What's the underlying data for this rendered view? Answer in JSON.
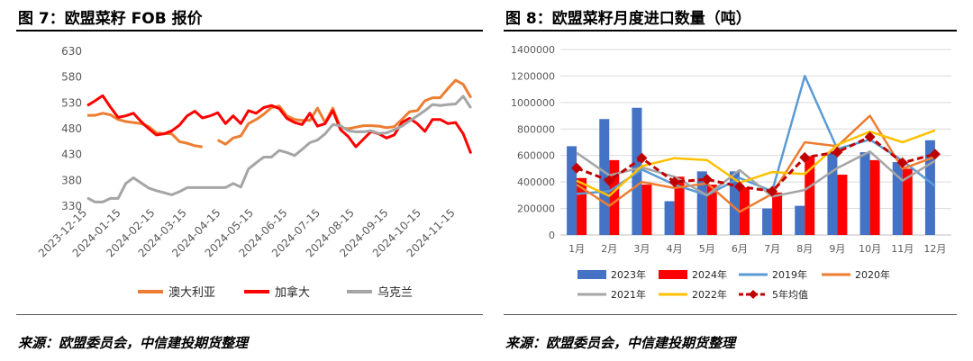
{
  "left": {
    "title": "图 7：欧盟菜籽 FOB 报价",
    "source": "来源：欧盟委员会，中信建投期货整理",
    "chart_data": {
      "type": "line",
      "title": "",
      "xlabel": "",
      "ylabel": "",
      "ylim": [
        330,
        630
      ],
      "yticks": [
        330,
        380,
        430,
        480,
        530,
        580,
        630
      ],
      "xticks": [
        "2023-12-15",
        "2024-01-15",
        "2024-02-15",
        "2024-03-15",
        "2024-04-15",
        "2024-05-15",
        "2024-06-15",
        "2024-07-15",
        "2024-08-15",
        "2024-09-15",
        "2024-10-15",
        "2024-11-15"
      ],
      "x_start": "2023-12-15",
      "x_end": "2024-12-05",
      "grid": false,
      "legend": "bottom",
      "series": [
        {
          "name": "澳大利亚",
          "color": "#ed7d31",
          "points": [
            [
              "2023-12-15",
              506
            ],
            [
              "2023-12-22",
              506
            ],
            [
              "2023-12-29",
              510
            ],
            [
              "2024-01-05",
              507
            ],
            [
              "2024-01-12",
              498
            ],
            [
              "2024-01-19",
              494
            ],
            [
              "2024-01-26",
              492
            ],
            [
              "2024-02-02",
              490
            ],
            [
              "2024-02-09",
              484
            ],
            [
              "2024-02-16",
              472
            ],
            [
              "2024-02-23",
              471
            ],
            [
              "2024-03-01",
              470
            ],
            [
              "2024-03-08",
              455
            ],
            [
              "2024-03-15",
              452
            ],
            [
              "2024-03-22",
              447
            ],
            [
              "2024-03-29",
              445
            ],
            null,
            [
              "2024-04-12",
              458
            ],
            [
              "2024-04-19",
              450
            ],
            [
              "2024-04-26",
              462
            ],
            [
              "2024-05-03",
              466
            ],
            [
              "2024-05-10",
              490
            ],
            [
              "2024-05-17",
              498
            ],
            [
              "2024-05-24",
              508
            ],
            [
              "2024-05-31",
              521
            ],
            [
              "2024-06-07",
              524
            ],
            [
              "2024-06-14",
              505
            ],
            [
              "2024-06-21",
              498
            ],
            [
              "2024-06-28",
              496
            ],
            [
              "2024-07-05",
              496
            ],
            [
              "2024-07-12",
              520
            ],
            [
              "2024-07-19",
              492
            ],
            [
              "2024-07-26",
              520
            ],
            [
              "2024-08-02",
              482
            ],
            [
              "2024-08-09",
              480
            ],
            [
              "2024-08-16",
              483
            ],
            [
              "2024-08-23",
              486
            ],
            [
              "2024-08-30",
              486
            ],
            [
              "2024-09-06",
              485
            ],
            [
              "2024-09-13",
              482
            ],
            [
              "2024-09-20",
              484
            ],
            [
              "2024-09-27",
              498
            ],
            [
              "2024-10-04",
              513
            ],
            [
              "2024-10-11",
              515
            ],
            [
              "2024-10-18",
              534
            ],
            [
              "2024-10-25",
              540
            ],
            [
              "2024-11-01",
              540
            ],
            [
              "2024-11-08",
              558
            ],
            [
              "2024-11-15",
              574
            ],
            [
              "2024-11-22",
              566
            ],
            [
              "2024-11-29",
              540
            ]
          ]
        },
        {
          "name": "加拿大",
          "color": "#ff0000",
          "points": [
            [
              "2023-12-15",
              525
            ],
            [
              "2023-12-22",
              534
            ],
            [
              "2023-12-29",
              544
            ],
            [
              "2024-01-05",
              522
            ],
            [
              "2024-01-12",
              502
            ],
            [
              "2024-01-19",
              505
            ],
            [
              "2024-01-26",
              510
            ],
            [
              "2024-02-02",
              494
            ],
            [
              "2024-02-09",
              480
            ],
            [
              "2024-02-16",
              468
            ],
            [
              "2024-02-23",
              470
            ],
            [
              "2024-03-01",
              476
            ],
            [
              "2024-03-08",
              487
            ],
            [
              "2024-03-15",
              505
            ],
            [
              "2024-03-22",
              514
            ],
            [
              "2024-03-29",
              501
            ],
            [
              "2024-04-05",
              505
            ],
            [
              "2024-04-12",
              511
            ],
            [
              "2024-04-19",
              490
            ],
            [
              "2024-04-26",
              505
            ],
            [
              "2024-05-03",
              490
            ],
            [
              "2024-05-10",
              515
            ],
            [
              "2024-05-17",
              510
            ],
            [
              "2024-05-24",
              521
            ],
            [
              "2024-05-31",
              525
            ],
            [
              "2024-06-07",
              519
            ],
            [
              "2024-06-14",
              500
            ],
            [
              "2024-06-21",
              492
            ],
            [
              "2024-06-28",
              488
            ],
            [
              "2024-07-05",
              510
            ],
            [
              "2024-07-12",
              485
            ],
            [
              "2024-07-19",
              490
            ],
            [
              "2024-07-26",
              515
            ],
            [
              "2024-08-02",
              478
            ],
            [
              "2024-08-09",
              465
            ],
            [
              "2024-08-16",
              445
            ],
            [
              "2024-08-23",
              460
            ],
            [
              "2024-08-30",
              475
            ],
            [
              "2024-09-06",
              470
            ],
            [
              "2024-09-13",
              462
            ],
            [
              "2024-09-20",
              468
            ],
            [
              "2024-09-27",
              492
            ],
            [
              "2024-10-04",
              500
            ],
            [
              "2024-10-11",
              490
            ],
            [
              "2024-10-18",
              475
            ],
            [
              "2024-10-25",
              498
            ],
            [
              "2024-11-01",
              498
            ],
            [
              "2024-11-08",
              490
            ],
            [
              "2024-11-15",
              492
            ],
            [
              "2024-11-22",
              470
            ],
            [
              "2024-11-29",
              432
            ]
          ]
        },
        {
          "name": "乌克兰",
          "color": "#a5a5a5",
          "points": [
            [
              "2023-12-15",
              346
            ],
            [
              "2023-12-22",
              338
            ],
            [
              "2023-12-29",
              338
            ],
            [
              "2024-01-05",
              345
            ],
            [
              "2024-01-12",
              345
            ],
            [
              "2024-01-19",
              374
            ],
            [
              "2024-01-26",
              385
            ],
            [
              "2024-02-02",
              375
            ],
            [
              "2024-02-09",
              365
            ],
            [
              "2024-02-16",
              360
            ],
            [
              "2024-02-23",
              356
            ],
            [
              "2024-03-01",
              352
            ],
            [
              "2024-03-08",
              358
            ],
            [
              "2024-03-15",
              366
            ],
            [
              "2024-03-22",
              366
            ],
            [
              "2024-03-29",
              366
            ],
            [
              "2024-04-05",
              366
            ],
            [
              "2024-04-12",
              366
            ],
            [
              "2024-04-19",
              366
            ],
            [
              "2024-04-26",
              374
            ],
            [
              "2024-05-03",
              367
            ],
            [
              "2024-05-10",
              402
            ],
            [
              "2024-05-17",
              414
            ],
            [
              "2024-05-24",
              425
            ],
            [
              "2024-05-31",
              425
            ],
            [
              "2024-06-07",
              438
            ],
            [
              "2024-06-14",
              434
            ],
            [
              "2024-06-21",
              428
            ],
            [
              "2024-06-28",
              440
            ],
            [
              "2024-07-05",
              453
            ],
            [
              "2024-07-12",
              458
            ],
            [
              "2024-07-19",
              470
            ],
            [
              "2024-07-26",
              488
            ],
            [
              "2024-08-02",
              486
            ],
            [
              "2024-08-09",
              476
            ],
            [
              "2024-08-16",
              474
            ],
            [
              "2024-08-23",
              474
            ],
            [
              "2024-08-30",
              476
            ],
            [
              "2024-09-06",
              471
            ],
            [
              "2024-09-13",
              472
            ],
            [
              "2024-09-20",
              478
            ],
            [
              "2024-09-27",
              485
            ],
            [
              "2024-10-04",
              495
            ],
            [
              "2024-10-11",
              505
            ],
            [
              "2024-10-18",
              515
            ],
            [
              "2024-10-25",
              527
            ],
            [
              "2024-11-01",
              525
            ],
            [
              "2024-11-08",
              527
            ],
            [
              "2024-11-15",
              528
            ],
            [
              "2024-11-22",
              543
            ],
            [
              "2024-11-29",
              520
            ]
          ]
        }
      ]
    }
  },
  "right": {
    "title": "图 8：欧盟菜籽月度进口数量（吨）",
    "source": "来源：欧盟委员会，中信建投期货整理",
    "chart_data": {
      "type": "bar",
      "title": "",
      "xlabel": "",
      "ylabel": "",
      "ylim": [
        0,
        1400000
      ],
      "yticks": [
        0,
        200000,
        400000,
        600000,
        800000,
        1000000,
        1200000,
        1400000
      ],
      "categories": [
        "1月",
        "2月",
        "3月",
        "4月",
        "5月",
        "6月",
        "7月",
        "8月",
        "9月",
        "10月",
        "11月",
        "12月"
      ],
      "grid": true,
      "legend": "bottom",
      "bar_series": [
        {
          "name": "2023年",
          "color": "#4472c4",
          "values": [
            670000,
            875000,
            960000,
            255000,
            480000,
            480000,
            200000,
            220000,
            630000,
            625000,
            550000,
            715000
          ]
        },
        {
          "name": "2024年",
          "color": "#ff0000",
          "values": [
            430000,
            565000,
            380000,
            440000,
            380000,
            360000,
            320000,
            595000,
            455000,
            565000,
            500000,
            null
          ]
        }
      ],
      "line_series": [
        {
          "name": "2019年",
          "color": "#5b9bd5",
          "style": "solid",
          "values": [
            310000,
            330000,
            495000,
            380000,
            300000,
            430000,
            330000,
            1200000,
            650000,
            720000,
            560000,
            370000
          ]
        },
        {
          "name": "2020年",
          "color": "#ed7d31",
          "style": "solid",
          "values": [
            380000,
            220000,
            400000,
            355000,
            390000,
            175000,
            310000,
            700000,
            670000,
            900000,
            500000,
            590000
          ]
        },
        {
          "name": "2021年",
          "color": "#a5a5a5",
          "style": "solid",
          "values": [
            620000,
            450000,
            510000,
            440000,
            300000,
            490000,
            290000,
            340000,
            505000,
            630000,
            410000,
            560000
          ]
        },
        {
          "name": "2022年",
          "color": "#ffc000",
          "style": "solid",
          "values": [
            410000,
            295000,
            520000,
            580000,
            565000,
            395000,
            475000,
            460000,
            680000,
            780000,
            700000,
            790000
          ]
        },
        {
          "name": "5年均值",
          "color": "#c00000",
          "style": "dashed-diamond",
          "values": [
            505000,
            410000,
            580000,
            400000,
            420000,
            365000,
            330000,
            585000,
            625000,
            740000,
            545000,
            610000
          ]
        }
      ]
    }
  }
}
